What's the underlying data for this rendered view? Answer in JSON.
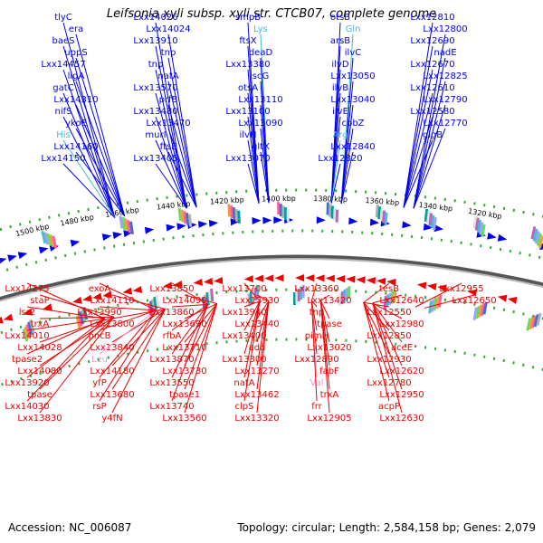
{
  "title": "Leifsonia xyli subsp. xyli str. CTCB07, complete genome",
  "accession": "Accession: NC_006087",
  "summary": "Topology: circular; Length: 2,584,158 bp; Genes: 2,079",
  "colors": {
    "forward_strand": "#0000ee",
    "reverse_strand": "#ee0000",
    "trna_forward": "#44bbdd",
    "trna_reverse": "#ee99cc",
    "backbone": "#888888",
    "tick": "#33aa33"
  },
  "ticks": [
    {
      "label": "1500 kbp"
    },
    {
      "label": "1480 kbp"
    },
    {
      "label": "1460 kbp"
    },
    {
      "label": "1440 kbp"
    },
    {
      "label": "1420 kbp"
    },
    {
      "label": "1400 kbp"
    },
    {
      "label": "1380 kbp"
    },
    {
      "label": "1360 kbp"
    },
    {
      "label": "1340 kbp"
    },
    {
      "label": "1320 kbp"
    }
  ],
  "forward_labels": [
    {
      "text": "tlyC",
      "kind": "gene"
    },
    {
      "text": "era",
      "kind": "gene"
    },
    {
      "text": "baeS",
      "kind": "gene"
    },
    {
      "text": "uppS",
      "kind": "gene"
    },
    {
      "text": "Lxx14457",
      "kind": "gene"
    },
    {
      "text": "ligA",
      "kind": "gene"
    },
    {
      "text": "gatC",
      "kind": "gene"
    },
    {
      "text": "Lxx14310",
      "kind": "gene"
    },
    {
      "text": "nifS",
      "kind": "gene"
    },
    {
      "text": "ykoE",
      "kind": "gene"
    },
    {
      "text": "His",
      "kind": "trna"
    },
    {
      "text": "Lxx14160",
      "kind": "gene"
    },
    {
      "text": "Lxx14150",
      "kind": "gene"
    },
    {
      "text": "Lxx14026",
      "kind": "gene"
    },
    {
      "text": "Lxx14024",
      "kind": "gene"
    },
    {
      "text": "Lxx13910",
      "kind": "gene"
    },
    {
      "text": "tnp",
      "kind": "gene"
    },
    {
      "text": "tnp",
      "kind": "gene"
    },
    {
      "text": "natA",
      "kind": "gene"
    },
    {
      "text": "Lxx13570",
      "kind": "gene"
    },
    {
      "text": "prfB",
      "kind": "gene"
    },
    {
      "text": "Lxx13480",
      "kind": "gene"
    },
    {
      "text": "Lxx13470",
      "kind": "gene"
    },
    {
      "text": "murI",
      "kind": "gene"
    },
    {
      "text": "ftsE",
      "kind": "gene"
    },
    {
      "text": "Lxx13405",
      "kind": "gene"
    },
    {
      "text": "smpB",
      "kind": "gene"
    },
    {
      "text": "Lys",
      "kind": "trna"
    },
    {
      "text": "ftsX",
      "kind": "gene"
    },
    {
      "text": "deaD",
      "kind": "gene"
    },
    {
      "text": "Lxx13380",
      "kind": "gene"
    },
    {
      "text": "scG",
      "kind": "gene"
    },
    {
      "text": "otsA",
      "kind": "gene"
    },
    {
      "text": "Lxx13110",
      "kind": "gene"
    },
    {
      "text": "Lxx13100",
      "kind": "gene"
    },
    {
      "text": "Lxx13090",
      "kind": "gene"
    },
    {
      "text": "ilvH",
      "kind": "gene"
    },
    {
      "text": "gltX",
      "kind": "gene"
    },
    {
      "text": "Lxx13070",
      "kind": "gene"
    },
    {
      "text": "otsB",
      "kind": "gene"
    },
    {
      "text": "Gln",
      "kind": "trna"
    },
    {
      "text": "arsB",
      "kind": "gene"
    },
    {
      "text": "ilvC",
      "kind": "gene"
    },
    {
      "text": "ilvD",
      "kind": "gene"
    },
    {
      "text": "Lxx13050",
      "kind": "gene"
    },
    {
      "text": "ilvB",
      "kind": "gene"
    },
    {
      "text": "Lxx13040",
      "kind": "gene"
    },
    {
      "text": "ilvE",
      "kind": "gene"
    },
    {
      "text": "cbbZ",
      "kind": "gene"
    },
    {
      "text": "Arg",
      "kind": "trna"
    },
    {
      "text": "Lxx12840",
      "kind": "gene"
    },
    {
      "text": "Lxx12820",
      "kind": "gene"
    },
    {
      "text": "Lxx12810",
      "kind": "gene"
    },
    {
      "text": "Lxx12800",
      "kind": "gene"
    },
    {
      "text": "Lxx12690",
      "kind": "gene"
    },
    {
      "text": "nadE",
      "kind": "gene"
    },
    {
      "text": "Lxx12670",
      "kind": "gene"
    },
    {
      "text": "Lxx12825",
      "kind": "gene"
    },
    {
      "text": "Lxx12610",
      "kind": "gene"
    },
    {
      "text": "Lxx12790",
      "kind": "gene"
    },
    {
      "text": "Lxx12580",
      "kind": "gene"
    },
    {
      "text": "Lxx12770",
      "kind": "gene"
    },
    {
      "text": "glgB",
      "kind": "gene"
    }
  ],
  "reverse_labels": [
    {
      "text": "Lxx14275",
      "kind": "gene"
    },
    {
      "text": "staP",
      "kind": "gene"
    },
    {
      "text": "lsr2",
      "kind": "gene"
    },
    {
      "text": "trxA",
      "kind": "gene"
    },
    {
      "text": "Lxx14010",
      "kind": "gene"
    },
    {
      "text": "Lxx14028",
      "kind": "gene"
    },
    {
      "text": "tpase2",
      "kind": "gene"
    },
    {
      "text": "Lxx14080",
      "kind": "gene"
    },
    {
      "text": "Lxx13920",
      "kind": "gene"
    },
    {
      "text": "tpase",
      "kind": "gene"
    },
    {
      "text": "Lxx14030",
      "kind": "gene"
    },
    {
      "text": "Lxx13830",
      "kind": "gene"
    },
    {
      "text": "exoA",
      "kind": "gene"
    },
    {
      "text": "Lxx14110",
      "kind": "gene"
    },
    {
      "text": "Lxx13990",
      "kind": "gene"
    },
    {
      "text": "Lxx13800",
      "kind": "gene"
    },
    {
      "text": "pncB",
      "kind": "gene"
    },
    {
      "text": "Lxx13840",
      "kind": "gene"
    },
    {
      "text": "Leu",
      "kind": "trna"
    },
    {
      "text": "Lxx14180",
      "kind": "gene"
    },
    {
      "text": "yfP",
      "kind": "gene"
    },
    {
      "text": "Lxx13680",
      "kind": "gene"
    },
    {
      "text": "rsP",
      "kind": "gene"
    },
    {
      "text": "y4fN",
      "kind": "gene"
    },
    {
      "text": "Lxx13850",
      "kind": "gene"
    },
    {
      "text": "Lxx14090",
      "kind": "gene"
    },
    {
      "text": "Lxx13860",
      "kind": "gene"
    },
    {
      "text": "Lxx13690",
      "kind": "gene"
    },
    {
      "text": "rfbA",
      "kind": "gene"
    },
    {
      "text": "Lxx13710",
      "kind": "gene"
    },
    {
      "text": "Lxx13870",
      "kind": "gene"
    },
    {
      "text": "Lxx13730",
      "kind": "gene"
    },
    {
      "text": "Lxx13550",
      "kind": "gene"
    },
    {
      "text": "tpase1",
      "kind": "gene"
    },
    {
      "text": "Lxx13740",
      "kind": "gene"
    },
    {
      "text": "Lxx13560",
      "kind": "gene"
    },
    {
      "text": "Lxx13700",
      "kind": "gene"
    },
    {
      "text": "Lxx13930",
      "kind": "gene"
    },
    {
      "text": "Lxx13940",
      "kind": "gene"
    },
    {
      "text": "Lxx13440",
      "kind": "gene"
    },
    {
      "text": "Lxx13400",
      "kind": "gene"
    },
    {
      "text": "add",
      "kind": "gene"
    },
    {
      "text": "Lxx13300",
      "kind": "gene"
    },
    {
      "text": "Lxx13270",
      "kind": "gene"
    },
    {
      "text": "natA",
      "kind": "gene"
    },
    {
      "text": "Lxx13462",
      "kind": "gene"
    },
    {
      "text": "clpS",
      "kind": "gene"
    },
    {
      "text": "Lxx13320",
      "kind": "gene"
    },
    {
      "text": "Lxx13360",
      "kind": "gene"
    },
    {
      "text": "Lxx13420",
      "kind": "gene"
    },
    {
      "text": "tnp",
      "kind": "gene"
    },
    {
      "text": "tpase",
      "kind": "gene"
    },
    {
      "text": "pimH",
      "kind": "gene"
    },
    {
      "text": "Lxx13020",
      "kind": "gene"
    },
    {
      "text": "Lxx12890",
      "kind": "gene"
    },
    {
      "text": "fabF",
      "kind": "gene"
    },
    {
      "text": "Val",
      "kind": "trna"
    },
    {
      "text": "trxA",
      "kind": "gene"
    },
    {
      "text": "frr",
      "kind": "gene"
    },
    {
      "text": "Lxx12905",
      "kind": "gene"
    },
    {
      "text": "tesB",
      "kind": "gene"
    },
    {
      "text": "Lxx12640",
      "kind": "gene"
    },
    {
      "text": "Lxx12550",
      "kind": "gene"
    },
    {
      "text": "Lxx12980",
      "kind": "gene"
    },
    {
      "text": "Lxx12850",
      "kind": "gene"
    },
    {
      "text": "aceE",
      "kind": "gene"
    },
    {
      "text": "Lxx12930",
      "kind": "gene"
    },
    {
      "text": "Lxx12620",
      "kind": "gene"
    },
    {
      "text": "Lxx12780",
      "kind": "gene"
    },
    {
      "text": "Lxx12950",
      "kind": "gene"
    },
    {
      "text": "acpP",
      "kind": "gene"
    },
    {
      "text": "Lxx12630",
      "kind": "gene"
    },
    {
      "text": "Lxx12955",
      "kind": "gene"
    },
    {
      "text": "Lxx12650",
      "kind": "gene"
    }
  ]
}
